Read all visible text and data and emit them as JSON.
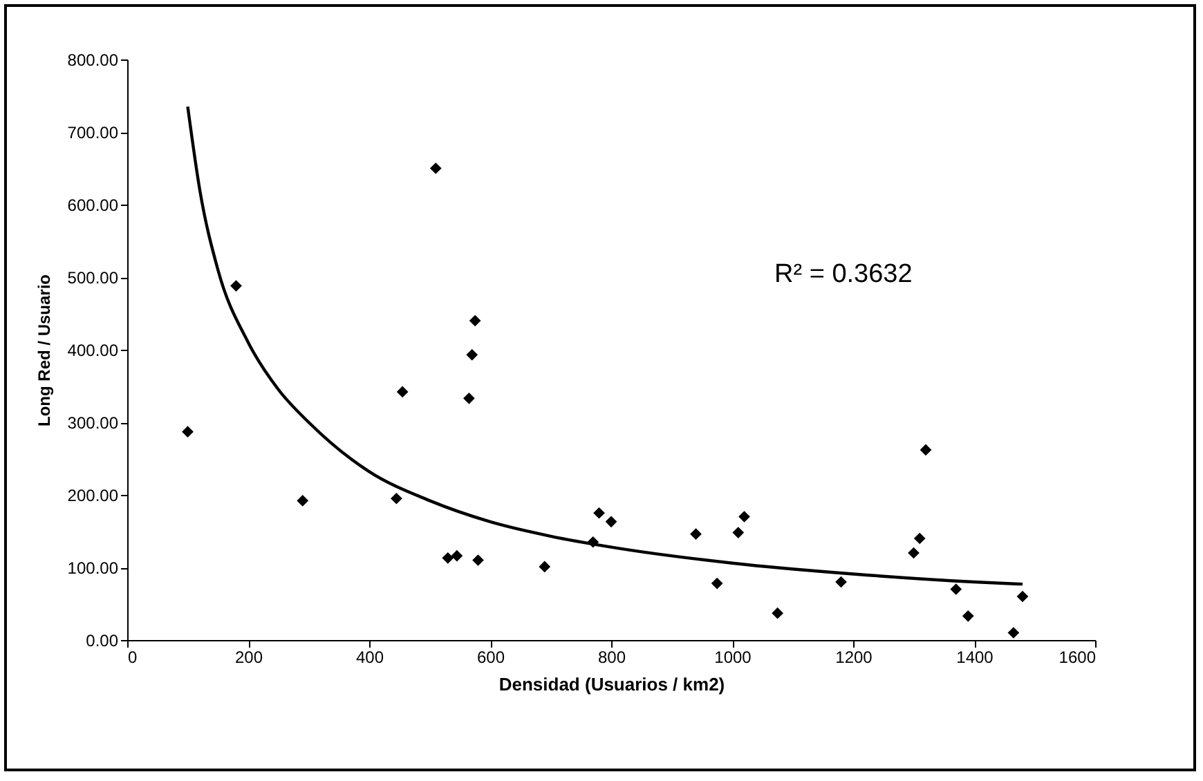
{
  "chart_data": {
    "type": "scatter",
    "xlabel": "Densidad (Usuarios / km2)",
    "ylabel": "Long Red / Usuario",
    "annotations": [
      "R² = 0.3632"
    ],
    "xlim": [
      0,
      1600
    ],
    "xticks": [
      0,
      200,
      400,
      600,
      800,
      1000,
      1200,
      1400,
      1600
    ],
    "ylim": [
      0,
      800
    ],
    "yticks": [
      {
        "value": 0,
        "label": "0.00"
      },
      {
        "value": 100,
        "label": "100.00"
      },
      {
        "value": 200,
        "label": "200.00"
      },
      {
        "value": 300,
        "label": "300.00"
      },
      {
        "value": 400,
        "label": "400.00"
      },
      {
        "value": 500,
        "label": "500.00"
      },
      {
        "value": 600,
        "label": "600.00"
      },
      {
        "value": 700,
        "label": "700.00"
      },
      {
        "value": 800,
        "label": "800.00"
      }
    ],
    "grid": false,
    "series": [
      {
        "marker": "diamond",
        "color": "#000000",
        "x": [
          100,
          180,
          290,
          445,
          455,
          510,
          530,
          545,
          565,
          570,
          575,
          580,
          690,
          770,
          780,
          800,
          940,
          975,
          1010,
          1020,
          1075,
          1180,
          1300,
          1310,
          1320,
          1370,
          1390,
          1465,
          1480
        ],
        "values": [
          287,
          488,
          192,
          195,
          342,
          650,
          113,
          116,
          333,
          393,
          440,
          110,
          101,
          135,
          175,
          163,
          146,
          78,
          148,
          170,
          37,
          80,
          120,
          140,
          262,
          70,
          33,
          10,
          60
        ]
      },
      {
        "type": "line",
        "marker": "none",
        "color": "#000000",
        "line_style": "solid",
        "x": [
          100,
          120,
          150,
          200,
          250,
          300,
          400,
          500,
          600,
          700,
          800,
          1000,
          1200,
          1400,
          1480
        ],
        "values": [
          735,
          620,
          510,
          410,
          345,
          300,
          232,
          192,
          163,
          143,
          128,
          106,
          91,
          80,
          77
        ]
      }
    ]
  }
}
